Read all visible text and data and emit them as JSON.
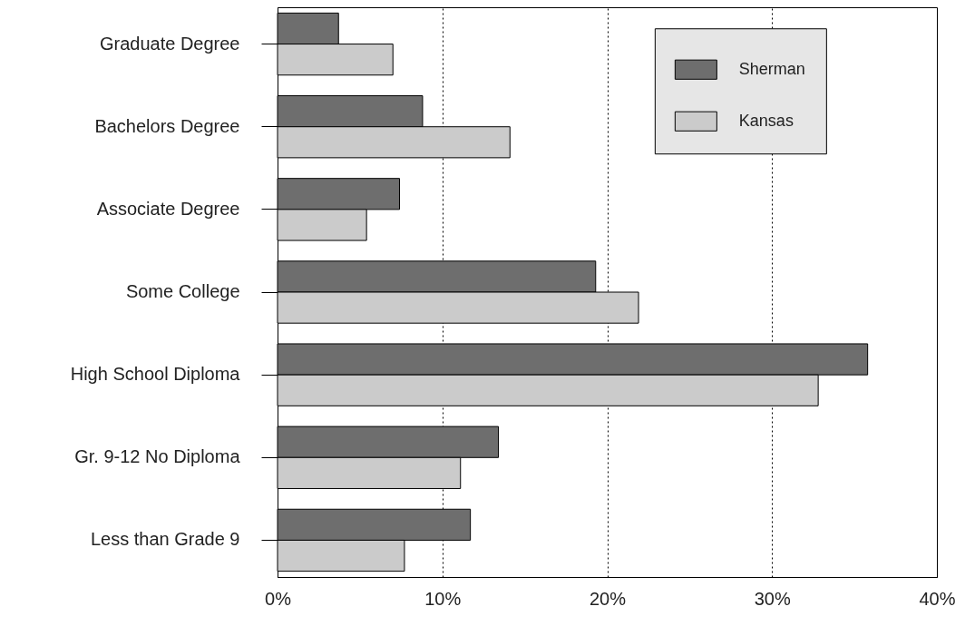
{
  "chart_data": {
    "type": "bar",
    "orientation": "horizontal",
    "categories": [
      "Graduate Degree",
      "Bachelors Degree",
      "Associate Degree",
      "Some College",
      "High School Diploma",
      "Gr. 9-12 No Diploma",
      "Less than Grade 9"
    ],
    "series": [
      {
        "name": "Sherman",
        "color": "#6e6e6e",
        "values": [
          3.7,
          8.8,
          7.4,
          19.3,
          35.8,
          13.4,
          11.7
        ]
      },
      {
        "name": "Kansas",
        "color": "#cbcbcb",
        "values": [
          7.0,
          14.1,
          5.4,
          21.9,
          32.8,
          11.1,
          7.7
        ]
      }
    ],
    "xlim": [
      0,
      40
    ],
    "xticks": [
      {
        "value": 0,
        "label": "0%"
      },
      {
        "value": 10,
        "label": "10%"
      },
      {
        "value": 20,
        "label": "20%"
      },
      {
        "value": 30,
        "label": "30%"
      },
      {
        "value": 40,
        "label": "40%"
      }
    ],
    "grid": "x",
    "legend": "top right"
  }
}
